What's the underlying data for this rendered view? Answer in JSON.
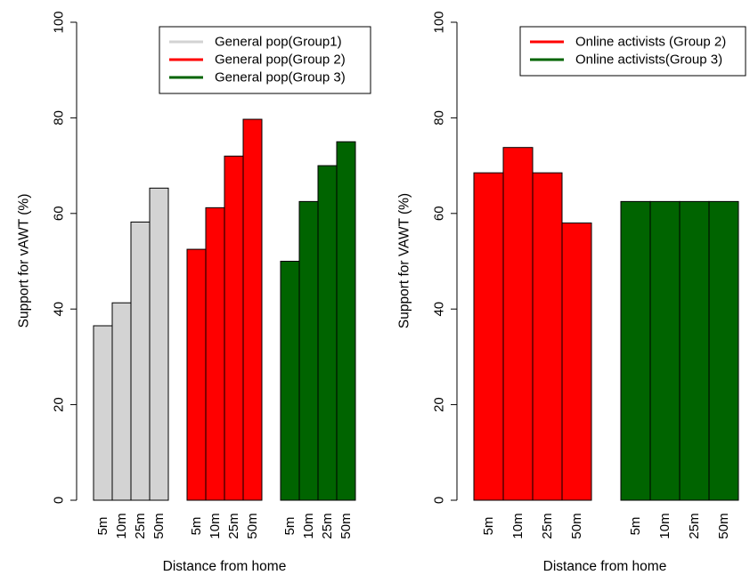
{
  "chart_data": [
    {
      "type": "bar",
      "xlabel": "Distance from home",
      "ylabel": "Support for vAWT (%)",
      "ylim": [
        0,
        100
      ],
      "yticks": [
        0,
        20,
        40,
        60,
        80,
        100
      ],
      "grid": false,
      "legend_position": "top-right",
      "categories": [
        "5m",
        "10m",
        "25m",
        "50m"
      ],
      "series": [
        {
          "name": "General pop(Group1)",
          "color": "#d3d3d3",
          "values": [
            36.5,
            41.3,
            58.2,
            65.3
          ]
        },
        {
          "name": "General pop(Group 2)",
          "color": "#ff0000",
          "values": [
            52.5,
            61.2,
            72.0,
            79.7
          ]
        },
        {
          "name": "General pop(Group 3)",
          "color": "#006400",
          "values": [
            50.0,
            62.5,
            70.0,
            75.0
          ]
        }
      ]
    },
    {
      "type": "bar",
      "xlabel": "Distance from home",
      "ylabel": "Support for VAWT (%)",
      "ylim": [
        0,
        100
      ],
      "yticks": [
        0,
        20,
        40,
        60,
        80,
        100
      ],
      "grid": false,
      "legend_position": "top-right",
      "categories": [
        "5m",
        "10m",
        "25m",
        "50m"
      ],
      "series": [
        {
          "name": "Online activists (Group 2)",
          "color": "#ff0000",
          "values": [
            68.5,
            73.8,
            68.5,
            58.0
          ]
        },
        {
          "name": "Online activists(Group 3)",
          "color": "#006400",
          "values": [
            62.5,
            62.5,
            62.5,
            62.5
          ]
        }
      ]
    }
  ]
}
